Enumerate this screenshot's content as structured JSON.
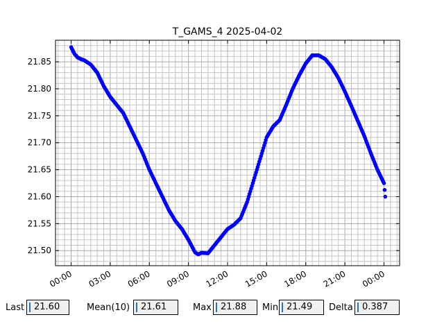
{
  "chart_data": {
    "type": "scatter",
    "title": "T_GAMS_4 2025-04-02",
    "xlabel": "",
    "ylabel": "",
    "x_unit": "hours since 00:00 of 2025-04-02",
    "x_range": [
      -1.2,
      25.2
    ],
    "ylim": [
      21.472,
      21.89
    ],
    "x_ticks": [
      "00:00",
      "03:00",
      "06:00",
      "09:00",
      "12:00",
      "15:00",
      "18:00",
      "21:00",
      "00:00"
    ],
    "y_ticks": [
      "21.50",
      "21.55",
      "21.60",
      "21.65",
      "21.70",
      "21.75",
      "21.80",
      "21.85"
    ],
    "grid": true,
    "series": [
      {
        "name": "",
        "color": "#0000ff",
        "points": [
          [
            0.0,
            21.877
          ],
          [
            0.25,
            21.865
          ],
          [
            0.5,
            21.858
          ],
          [
            0.75,
            21.855
          ],
          [
            1.0,
            21.853
          ],
          [
            1.5,
            21.845
          ],
          [
            2.0,
            21.83
          ],
          [
            2.5,
            21.805
          ],
          [
            3.0,
            21.785
          ],
          [
            3.5,
            21.77
          ],
          [
            4.0,
            21.755
          ],
          [
            4.5,
            21.73
          ],
          [
            5.0,
            21.705
          ],
          [
            5.5,
            21.68
          ],
          [
            6.0,
            21.65
          ],
          [
            6.5,
            21.625
          ],
          [
            7.0,
            21.6
          ],
          [
            7.5,
            21.575
          ],
          [
            8.0,
            21.555
          ],
          [
            8.5,
            21.54
          ],
          [
            9.0,
            21.52
          ],
          [
            9.5,
            21.497
          ],
          [
            9.75,
            21.493
          ],
          [
            10.0,
            21.496
          ],
          [
            10.5,
            21.495
          ],
          [
            11.0,
            21.51
          ],
          [
            11.5,
            21.525
          ],
          [
            12.0,
            21.54
          ],
          [
            12.5,
            21.548
          ],
          [
            13.0,
            21.56
          ],
          [
            13.5,
            21.59
          ],
          [
            14.0,
            21.63
          ],
          [
            14.5,
            21.67
          ],
          [
            15.0,
            21.71
          ],
          [
            15.5,
            21.73
          ],
          [
            16.0,
            21.742
          ],
          [
            16.5,
            21.77
          ],
          [
            17.0,
            21.8
          ],
          [
            17.5,
            21.825
          ],
          [
            18.0,
            21.847
          ],
          [
            18.5,
            21.862
          ],
          [
            19.0,
            21.862
          ],
          [
            19.5,
            21.855
          ],
          [
            20.0,
            21.84
          ],
          [
            20.5,
            21.82
          ],
          [
            21.0,
            21.795
          ],
          [
            21.5,
            21.768
          ],
          [
            22.0,
            21.74
          ],
          [
            22.5,
            21.712
          ],
          [
            23.0,
            21.68
          ],
          [
            23.5,
            21.65
          ],
          [
            24.0,
            21.625
          ],
          [
            24.1,
            21.6
          ]
        ]
      }
    ]
  },
  "stats": [
    {
      "label": "Last",
      "value": "21.60"
    },
    {
      "label": "Mean(10)",
      "value": "21.61"
    },
    {
      "label": "Max",
      "value": "21.88"
    },
    {
      "label": "Min",
      "value": "21.49"
    },
    {
      "label": "Delta",
      "value": "0.387"
    }
  ]
}
